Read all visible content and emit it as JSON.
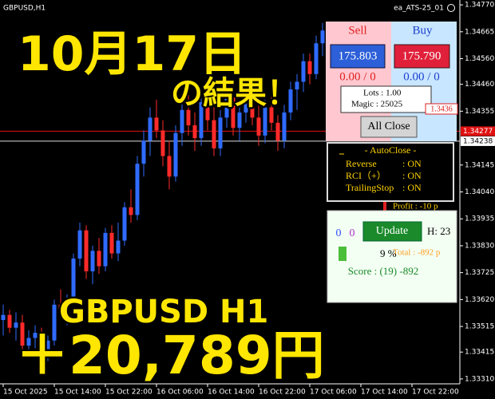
{
  "window": {
    "symbol_label": "GBPUSD,H1",
    "ea_label": "ea_ATS-25_01"
  },
  "overlay": {
    "date": "10月17日",
    "result": "の結果！",
    "pair": "GBPUSD H1",
    "profit": "＋20,789円"
  },
  "chart_data": {
    "type": "candlestick",
    "up_color": "#2f6bff",
    "down_color": "#ff2a2a",
    "open": [
      1.3354,
      1.3356,
      1.3351,
      1.3353,
      1.3344,
      1.3347,
      1.3349,
      1.3342,
      1.3346,
      1.336,
      1.3358,
      1.3362,
      1.3378,
      1.3389,
      1.3373,
      1.3381,
      1.3375,
      1.3388,
      1.338,
      1.3385,
      1.3398,
      1.3395,
      1.3415,
      1.3424,
      1.3433,
      1.3428,
      1.3418,
      1.341,
      1.3427,
      1.3436,
      1.343,
      1.3425,
      1.3439,
      1.3432,
      1.3421,
      1.3433,
      1.3441,
      1.3429,
      1.3435,
      1.3444,
      1.3433,
      1.3426,
      1.3437,
      1.3431,
      1.3424,
      1.3435,
      1.3444,
      1.3447,
      1.3455,
      1.345,
      1.3462
    ],
    "high": [
      1.336,
      1.3358,
      1.3357,
      1.3356,
      1.335,
      1.3352,
      1.3351,
      1.3348,
      1.3362,
      1.3366,
      1.3364,
      1.338,
      1.3392,
      1.3391,
      1.3383,
      1.3386,
      1.339,
      1.3391,
      1.3392,
      1.34,
      1.3405,
      1.3418,
      1.3428,
      1.3437,
      1.344,
      1.3432,
      1.3424,
      1.343,
      1.344,
      1.3442,
      1.3435,
      1.3442,
      1.3444,
      1.3437,
      1.3436,
      1.3445,
      1.3446,
      1.3438,
      1.3448,
      1.3447,
      1.3439,
      1.344,
      1.3443,
      1.3434,
      1.3438,
      1.3447,
      1.345,
      1.3458,
      1.3458,
      1.3465,
      1.347
    ],
    "low": [
      1.3348,
      1.3349,
      1.3346,
      1.3342,
      1.3339,
      1.3343,
      1.334,
      1.3338,
      1.3344,
      1.3356,
      1.3352,
      1.336,
      1.3375,
      1.337,
      1.3368,
      1.3372,
      1.3373,
      1.3378,
      1.3377,
      1.3383,
      1.3392,
      1.3393,
      1.341,
      1.3418,
      1.3425,
      1.3414,
      1.3405,
      1.3408,
      1.3422,
      1.3426,
      1.342,
      1.3422,
      1.3428,
      1.3418,
      1.3418,
      1.3429,
      1.3426,
      1.3424,
      1.3431,
      1.343,
      1.3422,
      1.3423,
      1.3428,
      1.342,
      1.3421,
      1.3432,
      1.3436,
      1.3443,
      1.3446,
      1.3448,
      1.3457
    ],
    "close": [
      1.3356,
      1.3351,
      1.3353,
      1.3344,
      1.3347,
      1.3349,
      1.3342,
      1.3346,
      1.336,
      1.3358,
      1.3362,
      1.3378,
      1.3389,
      1.3373,
      1.3381,
      1.3375,
      1.3388,
      1.338,
      1.3385,
      1.3398,
      1.3395,
      1.3415,
      1.3424,
      1.3433,
      1.3428,
      1.3418,
      1.341,
      1.3427,
      1.3436,
      1.343,
      1.3425,
      1.3439,
      1.3432,
      1.3421,
      1.3433,
      1.3441,
      1.3429,
      1.3435,
      1.3444,
      1.3433,
      1.3426,
      1.3437,
      1.3431,
      1.3424,
      1.3435,
      1.3444,
      1.3447,
      1.3455,
      1.345,
      1.3462,
      1.3467
    ],
    "ylim": [
      1.33291,
      1.34789
    ],
    "yticks": [
      {
        "value": 1.3477,
        "label": "1.34770"
      },
      1.34665,
      {
        "value": 1.3456,
        "label": "1.34560"
      },
      {
        "value": 1.3446,
        "label": "1.34460"
      },
      1.34355,
      1.34145,
      {
        "value": 1.3404,
        "label": "1.34040"
      },
      1.33935,
      {
        "value": 1.3383,
        "label": "1.33830"
      },
      1.33725,
      {
        "value": 1.3362,
        "label": "1.33620"
      },
      1.33515,
      1.33415,
      {
        "value": 1.3331,
        "label": "1.33310"
      }
    ],
    "bid_line": 1.34277,
    "ask_line": 1.34238,
    "x_labels": [
      "15 Oct 2025",
      "15 Oct 14:00",
      "15 Oct 22:00",
      "16 Oct 06:00",
      "16 Oct 14:00",
      "16 Oct 22:00",
      "17 Oct 06:00",
      "17 Oct 14:00",
      "17 Oct 22:00"
    ]
  },
  "trade_panel": {
    "sell_label": "Sell",
    "buy_label": "Buy",
    "sell_price": "175.803",
    "buy_price": "175.790",
    "sell_stats": "0.00 / 0",
    "buy_stats": "0.00 / 0",
    "lots": "Lots : 1.00",
    "magic": "Magic : 25025",
    "price_tag": "1.3436",
    "close_button": "All Close"
  },
  "autoclose": {
    "title": "- AutoClose -",
    "rows": [
      [
        "Reverse",
        ": ON"
      ],
      [
        "RCI（+）",
        ": ON"
      ],
      [
        "TrailingStop",
        ": ON"
      ]
    ]
  },
  "profit_label": "Profit : -10 p",
  "stats_panel": {
    "count_a": "0",
    "count_b": "0",
    "update_button": "Update",
    "hours": "H: 23",
    "percent": "9 %",
    "total": "Total : -892 p",
    "score": "Score : (19) -892"
  }
}
